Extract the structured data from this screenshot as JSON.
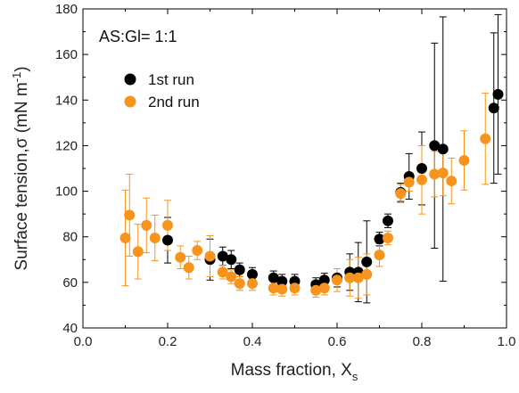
{
  "chart_data": {
    "type": "scatter",
    "title": "",
    "annotation": "AS:Gl= 1:1",
    "xlabel": "Mass fraction, X",
    "xlabel_sub": "s",
    "ylabel": "Surface tension,σ (mN m",
    "ylabel_sup": "-1",
    "ylabel_end": ")",
    "xlim": [
      0.0,
      1.0
    ],
    "ylim": [
      40,
      180
    ],
    "xticks": [
      "0.0",
      "0.2",
      "0.4",
      "0.6",
      "0.8",
      "1.0"
    ],
    "yticks": [
      "40",
      "60",
      "80",
      "100",
      "120",
      "140",
      "160",
      "180"
    ],
    "grid": false,
    "legend_position": "upper-left",
    "series": [
      {
        "name": "1st run",
        "color": "#000000",
        "err_color": "#000000",
        "points": [
          {
            "x": 0.2,
            "y": 78.5,
            "err": 10
          },
          {
            "x": 0.3,
            "y": 70.0,
            "err": 9
          },
          {
            "x": 0.33,
            "y": 71.5,
            "err": 4
          },
          {
            "x": 0.35,
            "y": 70.0,
            "err": 4
          },
          {
            "x": 0.37,
            "y": 65.5,
            "err": 3
          },
          {
            "x": 0.4,
            "y": 63.5,
            "err": 3
          },
          {
            "x": 0.45,
            "y": 62.0,
            "err": 3
          },
          {
            "x": 0.47,
            "y": 60.5,
            "err": 3
          },
          {
            "x": 0.5,
            "y": 60.5,
            "err": 3
          },
          {
            "x": 0.55,
            "y": 59.0,
            "err": 3
          },
          {
            "x": 0.57,
            "y": 61.0,
            "err": 3
          },
          {
            "x": 0.6,
            "y": 62.0,
            "err": 4
          },
          {
            "x": 0.63,
            "y": 64.5,
            "err": 8
          },
          {
            "x": 0.65,
            "y": 64.5,
            "err": 13
          },
          {
            "x": 0.67,
            "y": 69.0,
            "err": 18
          },
          {
            "x": 0.7,
            "y": 79.0,
            "err": 3
          },
          {
            "x": 0.72,
            "y": 87.0,
            "err": 3
          },
          {
            "x": 0.75,
            "y": 99.5,
            "err": 4
          },
          {
            "x": 0.77,
            "y": 106.5,
            "err": 10
          },
          {
            "x": 0.8,
            "y": 110.0,
            "err": 16
          },
          {
            "x": 0.83,
            "y": 120.0,
            "err": 45
          },
          {
            "x": 0.85,
            "y": 118.5,
            "err": 58
          },
          {
            "x": 0.97,
            "y": 136.5,
            "err": 33
          },
          {
            "x": 0.98,
            "y": 142.5,
            "err": 35
          }
        ]
      },
      {
        "name": "2nd run",
        "color": "#f7941d",
        "err_color": "#f7941d",
        "points": [
          {
            "x": 0.1,
            "y": 79.5,
            "err": 21
          },
          {
            "x": 0.11,
            "y": 89.5,
            "err": 18
          },
          {
            "x": 0.13,
            "y": 73.5,
            "err": 12
          },
          {
            "x": 0.15,
            "y": 85.0,
            "err": 12
          },
          {
            "x": 0.17,
            "y": 79.5,
            "err": 10
          },
          {
            "x": 0.2,
            "y": 85.0,
            "err": 11
          },
          {
            "x": 0.23,
            "y": 71.0,
            "err": 5
          },
          {
            "x": 0.25,
            "y": 66.5,
            "err": 5
          },
          {
            "x": 0.27,
            "y": 74.0,
            "err": 4
          },
          {
            "x": 0.3,
            "y": 71.5,
            "err": 9
          },
          {
            "x": 0.33,
            "y": 64.5,
            "err": 3
          },
          {
            "x": 0.35,
            "y": 62.5,
            "err": 3
          },
          {
            "x": 0.37,
            "y": 59.5,
            "err": 3
          },
          {
            "x": 0.4,
            "y": 59.5,
            "err": 3
          },
          {
            "x": 0.45,
            "y": 57.5,
            "err": 3
          },
          {
            "x": 0.47,
            "y": 57.0,
            "err": 3
          },
          {
            "x": 0.5,
            "y": 57.5,
            "err": 3
          },
          {
            "x": 0.55,
            "y": 56.5,
            "err": 3
          },
          {
            "x": 0.57,
            "y": 57.5,
            "err": 3
          },
          {
            "x": 0.6,
            "y": 61.0,
            "err": 5
          },
          {
            "x": 0.63,
            "y": 62.0,
            "err": 8
          },
          {
            "x": 0.65,
            "y": 62.0,
            "err": 9
          },
          {
            "x": 0.67,
            "y": 63.5,
            "err": 9
          },
          {
            "x": 0.7,
            "y": 72.0,
            "err": 5
          },
          {
            "x": 0.72,
            "y": 79.5,
            "err": 3
          },
          {
            "x": 0.75,
            "y": 99.0,
            "err": 4
          },
          {
            "x": 0.77,
            "y": 104.0,
            "err": 4
          },
          {
            "x": 0.8,
            "y": 105.0,
            "err": 15
          },
          {
            "x": 0.83,
            "y": 107.5,
            "err": 10
          },
          {
            "x": 0.85,
            "y": 108.0,
            "err": 10
          },
          {
            "x": 0.87,
            "y": 104.5,
            "err": 10
          },
          {
            "x": 0.9,
            "y": 113.5,
            "err": 13
          },
          {
            "x": 0.95,
            "y": 123.0,
            "err": 20
          }
        ]
      }
    ]
  }
}
